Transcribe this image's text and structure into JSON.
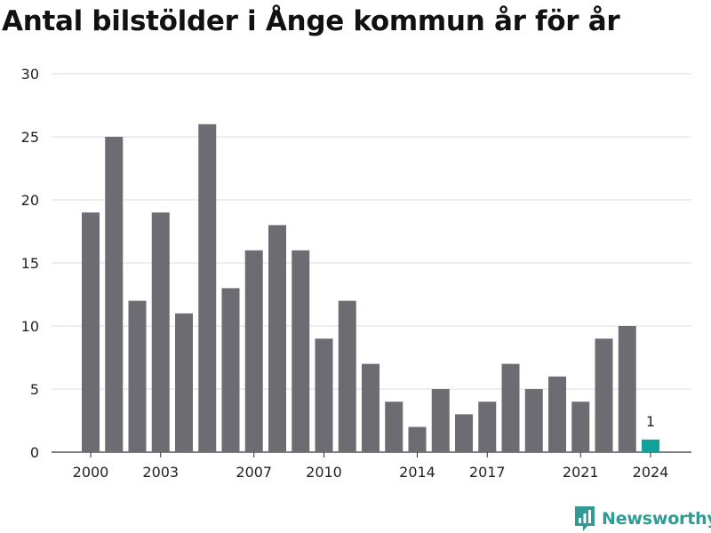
{
  "title": "Antal bilstölder i Ånge kommun år för år",
  "brand": {
    "name": "Newsworthy",
    "icon": "newsworthy-logo-icon"
  },
  "colors": {
    "bar": "#6d6c72",
    "highlight": "#12a19a",
    "grid": "#dcdcdc",
    "brand": "#2f9b94"
  },
  "chart_data": {
    "type": "bar",
    "title": "Antal bilstölder i Ånge kommun år för år",
    "xlabel": "",
    "ylabel": "",
    "categories": [
      "2000",
      "2001",
      "2002",
      "2003",
      "2004",
      "2005",
      "2006",
      "2007",
      "2008",
      "2009",
      "2010",
      "2011",
      "2012",
      "2013",
      "2014",
      "2015",
      "2016",
      "2017",
      "2018",
      "2019",
      "2020",
      "2021",
      "2022",
      "2023",
      "2024"
    ],
    "values": [
      19,
      25,
      12,
      19,
      11,
      26,
      13,
      16,
      18,
      16,
      9,
      12,
      7,
      4,
      2,
      5,
      3,
      4,
      7,
      5,
      6,
      4,
      9,
      10,
      1
    ],
    "highlight_index": 24,
    "data_labels": [
      {
        "category": "2024",
        "text": "1"
      }
    ],
    "x_tick_labels": [
      "2000",
      "2003",
      "2007",
      "2010",
      "2014",
      "2017",
      "2021",
      "2024"
    ],
    "y_ticks": [
      0,
      5,
      10,
      15,
      20,
      25,
      30
    ],
    "ylim": [
      0,
      30
    ],
    "grid": true,
    "legend": "none"
  }
}
